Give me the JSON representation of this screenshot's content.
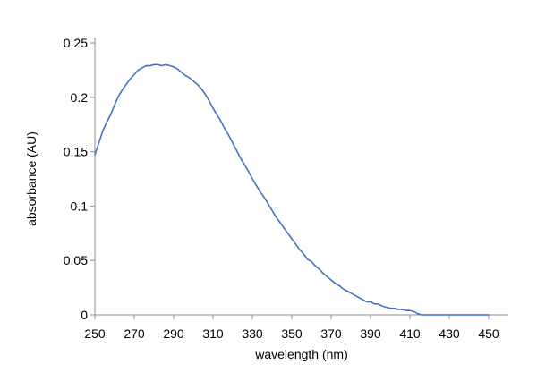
{
  "chart_data": {
    "type": "line",
    "title": "",
    "xlabel": "wavelength (nm)",
    "ylabel": "absorbance (AU)",
    "xlim": [
      250,
      460
    ],
    "ylim": [
      0,
      0.25
    ],
    "xticks": [
      250,
      270,
      290,
      310,
      330,
      350,
      370,
      390,
      410,
      430,
      450
    ],
    "yticks": [
      0,
      0.05,
      0.1,
      0.15,
      0.2,
      0.25
    ],
    "ytick_labels": [
      "0",
      "0.05",
      "0.1",
      "0.15",
      "0.2",
      "0.25"
    ],
    "grid": false,
    "legend": "none",
    "series": [
      {
        "name": "absorbance",
        "color": "#4472c4",
        "x": [
          250,
          252,
          254,
          256,
          258,
          260,
          262,
          264,
          266,
          268,
          270,
          272,
          274,
          276,
          278,
          280,
          282,
          284,
          286,
          288,
          290,
          292,
          294,
          296,
          298,
          300,
          302,
          304,
          306,
          308,
          310,
          312,
          314,
          316,
          318,
          320,
          322,
          324,
          326,
          328,
          330,
          332,
          334,
          336,
          338,
          340,
          342,
          344,
          346,
          348,
          350,
          352,
          354,
          356,
          358,
          360,
          362,
          364,
          366,
          368,
          370,
          372,
          374,
          376,
          378,
          380,
          382,
          384,
          386,
          388,
          390,
          392,
          394,
          396,
          398,
          400,
          402,
          404,
          406,
          408,
          410,
          412,
          414,
          416,
          420,
          430,
          440,
          450
        ],
        "y": [
          0.147,
          0.158,
          0.169,
          0.177,
          0.184,
          0.193,
          0.201,
          0.207,
          0.212,
          0.217,
          0.221,
          0.225,
          0.227,
          0.229,
          0.229,
          0.23,
          0.23,
          0.229,
          0.23,
          0.229,
          0.228,
          0.226,
          0.223,
          0.22,
          0.218,
          0.215,
          0.212,
          0.208,
          0.203,
          0.197,
          0.19,
          0.184,
          0.178,
          0.171,
          0.165,
          0.158,
          0.151,
          0.144,
          0.138,
          0.132,
          0.125,
          0.119,
          0.113,
          0.108,
          0.102,
          0.096,
          0.09,
          0.085,
          0.08,
          0.075,
          0.07,
          0.065,
          0.06,
          0.056,
          0.051,
          0.049,
          0.045,
          0.042,
          0.038,
          0.035,
          0.032,
          0.029,
          0.027,
          0.024,
          0.022,
          0.02,
          0.018,
          0.016,
          0.014,
          0.012,
          0.012,
          0.01,
          0.01,
          0.008,
          0.007,
          0.006,
          0.006,
          0.005,
          0.005,
          0.004,
          0.004,
          0.003,
          0.001,
          0.0,
          0.0,
          0.0,
          0.0,
          0.0
        ]
      }
    ]
  }
}
